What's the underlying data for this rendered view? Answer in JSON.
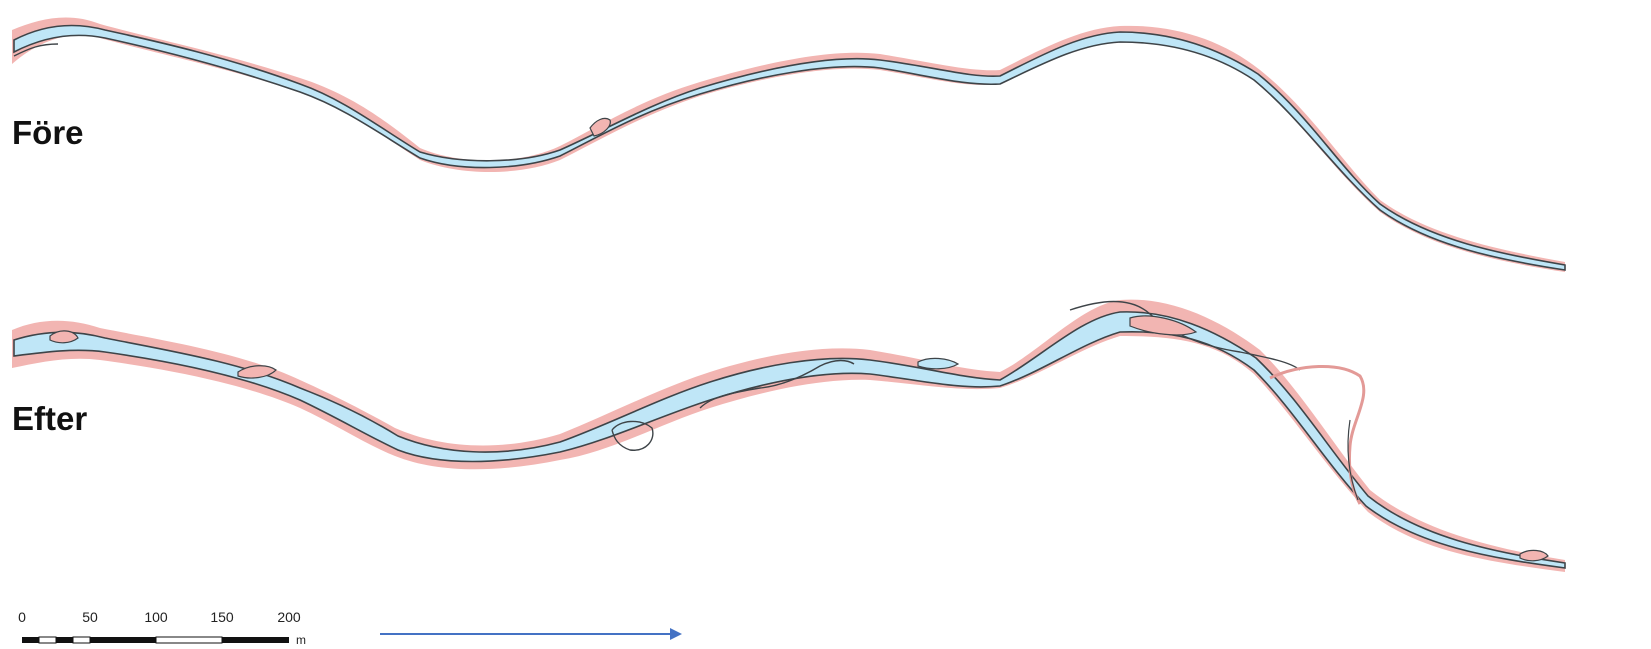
{
  "panels": {
    "before": {
      "label": "Före"
    },
    "after": {
      "label": "Efter"
    }
  },
  "scale_bar": {
    "ticks": [
      "0",
      "50",
      "100",
      "150",
      "200"
    ],
    "unit": "m"
  },
  "flow_direction": "right",
  "colors": {
    "water": "#bfe6f7",
    "gravel_bank": "#f2b5b2",
    "outline": "#3e4448",
    "arrow": "#4472c4",
    "background": "#ffffff"
  }
}
